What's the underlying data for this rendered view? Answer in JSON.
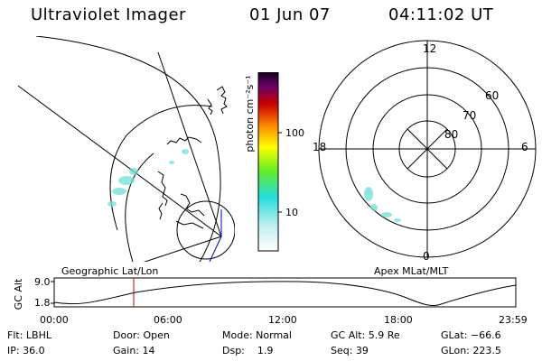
{
  "header": {
    "instrument": "Ultraviolet Imager",
    "date": "01 Jun 07",
    "time": "04:11:02 UT"
  },
  "colorbar": {
    "label": "photon cm⁻²s⁻¹",
    "tick_100": "100",
    "tick_10": "10"
  },
  "polar_plot": {
    "clock_12": "12",
    "clock_18": "18",
    "clock_6": "6",
    "clock_0": "0",
    "lat_60": "60",
    "lat_70": "70",
    "lat_80": "80"
  },
  "map_labels": {
    "left": "Geographic Lat/Lon",
    "right": "Apex MLat/MLT"
  },
  "altitude_chart": {
    "ylabel": "GC Alt",
    "ymax": "9.0",
    "ymin": "1.8",
    "time_ticks": [
      "00:00",
      "06:00",
      "12:00",
      "18:00",
      "23:59"
    ],
    "marker_time": "04:11"
  },
  "info": {
    "flt": "Flt: LBHL",
    "ip": "IP: 36.0",
    "door": "Door: Open",
    "gain": "Gain: 14",
    "mode": "Mode: Normal",
    "dsp": "Dsp:    1.9",
    "gc_alt": "GC Alt: 5.9 Re",
    "seq": "Seq: 39",
    "glat": "GLat: −66.6",
    "glon": "GLon: 223.5"
  },
  "colors": {
    "aurora": "#6fe0d8",
    "marker": "#cc0000",
    "nadir_line": "#0000cc"
  }
}
